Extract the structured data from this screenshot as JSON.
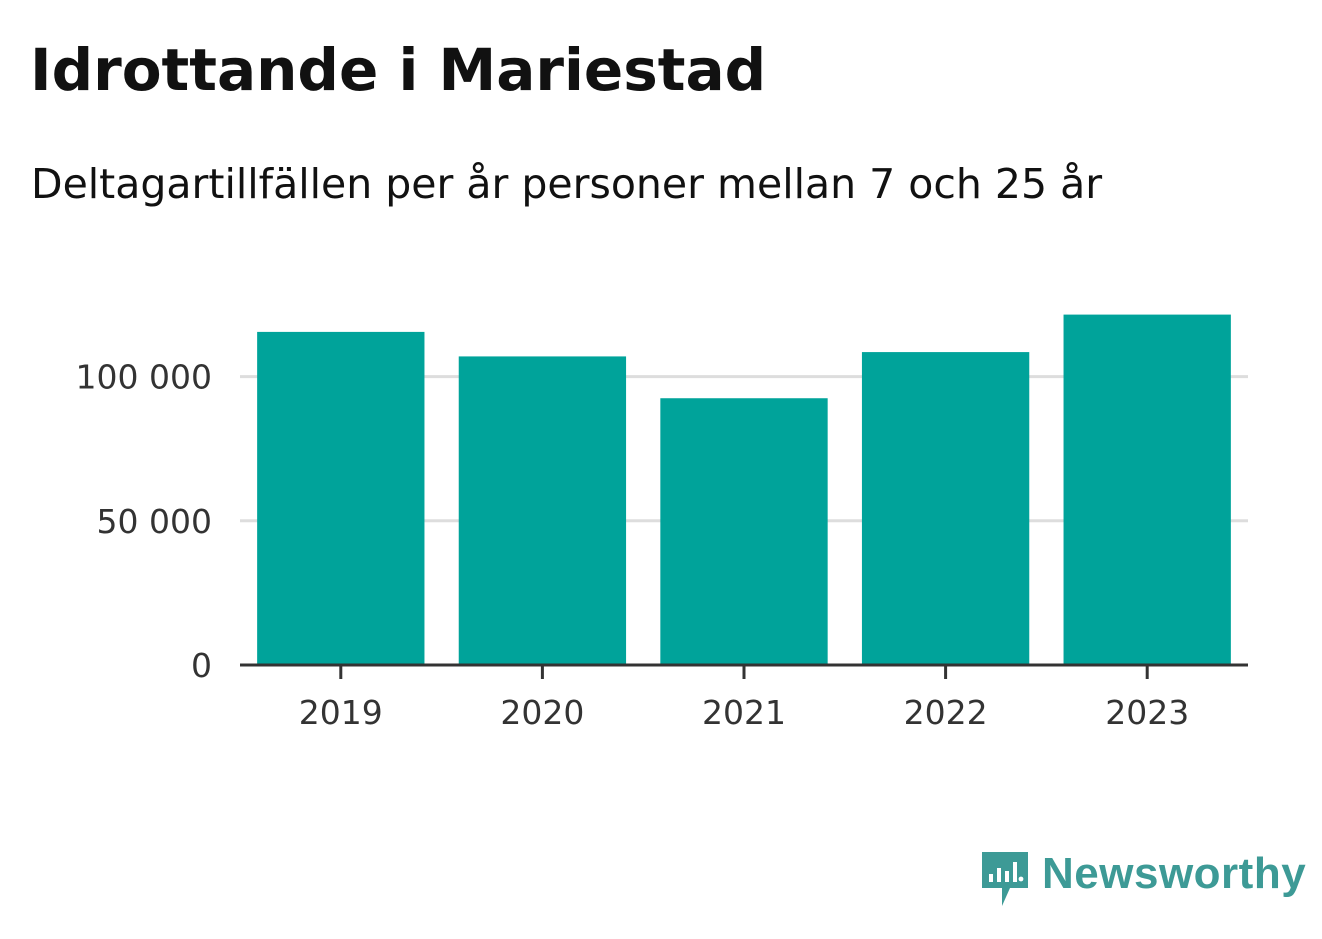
{
  "header": {
    "title": "Idrottande i Mariestad",
    "subtitle": "Deltagartillfällen per år personer mellan 7 och 25 år"
  },
  "brand": {
    "name": "Newsworthy",
    "icon": "newsworthy-logo-icon",
    "color": "#3d9a96"
  },
  "chart_data": {
    "type": "bar",
    "title": "Idrottande i Mariestad",
    "subtitle": "Deltagartillfällen per år personer mellan 7 och 25 år",
    "xlabel": "",
    "ylabel": "",
    "categories": [
      "2019",
      "2020",
      "2021",
      "2022",
      "2023"
    ],
    "values": [
      115500,
      107000,
      92500,
      108500,
      121500
    ],
    "ylim": [
      0,
      125000
    ],
    "yticks": [
      0,
      50000,
      100000
    ],
    "ytick_labels": [
      "0",
      "50 000",
      "100 000"
    ],
    "grid": true,
    "legend": "none",
    "bar_color": "#00a39a",
    "grid_color": "#dddddd",
    "axis_color": "#333333"
  }
}
